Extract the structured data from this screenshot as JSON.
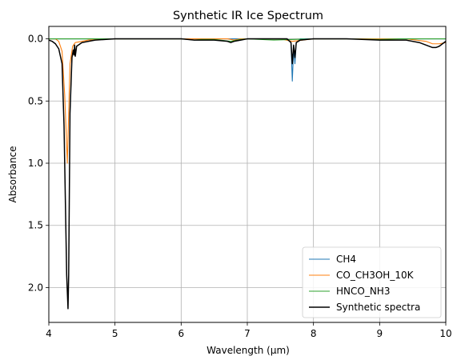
{
  "chart_data": {
    "type": "line",
    "title": "Synthetic IR Ice Spectrum",
    "xlabel": "Wavelength (µm)",
    "ylabel": "Absorbance",
    "xlim": [
      4,
      10
    ],
    "ylim": [
      2.28,
      -0.1
    ],
    "y_inverted": true,
    "grid": true,
    "legend_position": "lower-right",
    "xticks": [
      "4",
      "5",
      "6",
      "7",
      "8",
      "9",
      "10"
    ],
    "yticks": [
      "0.0",
      "0.5",
      "1.0",
      "1.5",
      "2.0"
    ],
    "series": [
      {
        "name": "CH4",
        "color": "#1f77b4",
        "x": [
          4.0,
          6.0,
          6.8,
          7.6,
          7.66,
          7.68,
          7.7,
          7.72,
          7.74,
          7.8,
          10.0
        ],
        "y": [
          0.0,
          0.0,
          0.0,
          0.0,
          0.03,
          0.34,
          0.08,
          0.2,
          0.03,
          0.0,
          0.0
        ]
      },
      {
        "name": "CO_CH3OH_10K",
        "color": "#ff7f0e",
        "x": [
          4.0,
          4.1,
          4.15,
          4.2,
          4.24,
          4.28,
          4.3,
          4.32,
          4.36,
          4.4,
          4.5,
          4.6,
          5.0,
          6.0,
          6.7,
          6.8,
          6.9,
          7.5,
          7.68,
          8.0,
          9.0,
          9.4,
          9.7,
          9.8,
          9.9,
          10.0
        ],
        "y": [
          0.0,
          0.0,
          0.02,
          0.1,
          0.45,
          1.0,
          0.6,
          0.2,
          0.06,
          0.03,
          0.02,
          0.01,
          0.0,
          0.0,
          0.0,
          0.01,
          0.0,
          0.0,
          0.02,
          0.0,
          0.0,
          0.0,
          0.02,
          0.04,
          0.04,
          0.03
        ]
      },
      {
        "name": "HNCO_NH3",
        "color": "#2ca02c",
        "x": [
          4.0,
          6.0,
          6.2,
          6.3,
          6.5,
          6.75,
          6.8,
          6.9,
          7.0,
          7.4,
          7.7,
          8.0,
          8.5,
          9.0,
          9.3,
          9.5,
          10.0
        ],
        "y": [
          0.0,
          0.0,
          0.01,
          0.005,
          0.005,
          0.02,
          0.015,
          0.005,
          0.0,
          0.01,
          0.005,
          0.0,
          0.0,
          0.005,
          0.0,
          0.0,
          0.0
        ]
      },
      {
        "name": "Synthetic spectra",
        "color": "#000000",
        "x": [
          4.0,
          4.05,
          4.1,
          4.15,
          4.2,
          4.23,
          4.25,
          4.27,
          4.29,
          4.3,
          4.32,
          4.35,
          4.37,
          4.38,
          4.39,
          4.4,
          4.42,
          4.5,
          4.6,
          4.7,
          5.0,
          6.0,
          6.2,
          6.3,
          6.5,
          6.7,
          6.75,
          6.8,
          6.9,
          7.0,
          7.5,
          7.6,
          7.66,
          7.68,
          7.7,
          7.72,
          7.74,
          7.8,
          8.0,
          8.5,
          9.0,
          9.4,
          9.6,
          9.7,
          9.8,
          9.85,
          9.9,
          10.0
        ],
        "y": [
          0.01,
          0.02,
          0.04,
          0.08,
          0.2,
          0.7,
          1.3,
          1.9,
          2.17,
          1.9,
          0.6,
          0.15,
          0.09,
          0.13,
          0.05,
          0.14,
          0.06,
          0.03,
          0.02,
          0.01,
          0.0,
          0.0,
          0.01,
          0.01,
          0.01,
          0.02,
          0.03,
          0.02,
          0.01,
          0.0,
          0.0,
          0.0,
          0.03,
          0.2,
          0.05,
          0.15,
          0.03,
          0.01,
          0.0,
          0.0,
          0.01,
          0.01,
          0.03,
          0.05,
          0.07,
          0.07,
          0.06,
          0.02
        ]
      }
    ]
  }
}
